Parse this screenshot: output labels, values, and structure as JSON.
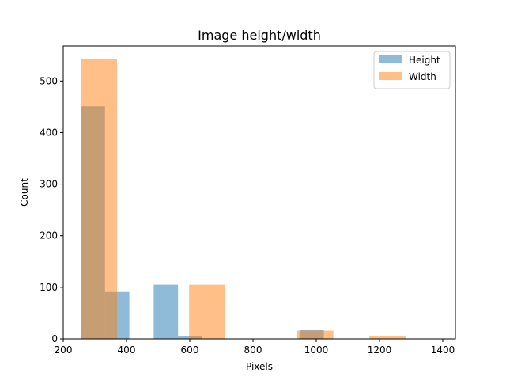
{
  "chart_data": {
    "type": "bar",
    "title": "Image height/width",
    "xlabel": "Pixels",
    "ylabel": "Count",
    "xlim": [
      200,
      1440
    ],
    "ylim": [
      0,
      568
    ],
    "x_ticks": [
      200,
      400,
      600,
      800,
      1000,
      1200,
      1400
    ],
    "y_ticks": [
      0,
      100,
      200,
      300,
      400,
      500
    ],
    "legend_position": "top-right",
    "series": [
      {
        "name": "Height",
        "color": "#1f77b4",
        "opacity": 0.5,
        "bins": [
          {
            "x0": 256,
            "x1": 332,
            "count": 451
          },
          {
            "x0": 332,
            "x1": 409,
            "count": 91
          },
          {
            "x0": 409,
            "x1": 486,
            "count": 0
          },
          {
            "x0": 486,
            "x1": 563,
            "count": 105
          },
          {
            "x0": 563,
            "x1": 640,
            "count": 6
          },
          {
            "x0": 640,
            "x1": 716,
            "count": 0
          },
          {
            "x0": 716,
            "x1": 793,
            "count": 0
          },
          {
            "x0": 793,
            "x1": 870,
            "count": 0
          },
          {
            "x0": 870,
            "x1": 947,
            "count": 0
          },
          {
            "x0": 947,
            "x1": 1024,
            "count": 17
          }
        ]
      },
      {
        "name": "Width",
        "color": "#ff7f0e",
        "opacity": 0.5,
        "bins": [
          {
            "x0": 256,
            "x1": 370,
            "count": 542
          },
          {
            "x0": 370,
            "x1": 484,
            "count": 0
          },
          {
            "x0": 484,
            "x1": 598,
            "count": 0
          },
          {
            "x0": 598,
            "x1": 712,
            "count": 105
          },
          {
            "x0": 712,
            "x1": 826,
            "count": 0
          },
          {
            "x0": 826,
            "x1": 940,
            "count": 0
          },
          {
            "x0": 940,
            "x1": 1054,
            "count": 16
          },
          {
            "x0": 1054,
            "x1": 1168,
            "count": 0
          },
          {
            "x0": 1168,
            "x1": 1282,
            "count": 6
          }
        ]
      }
    ]
  }
}
